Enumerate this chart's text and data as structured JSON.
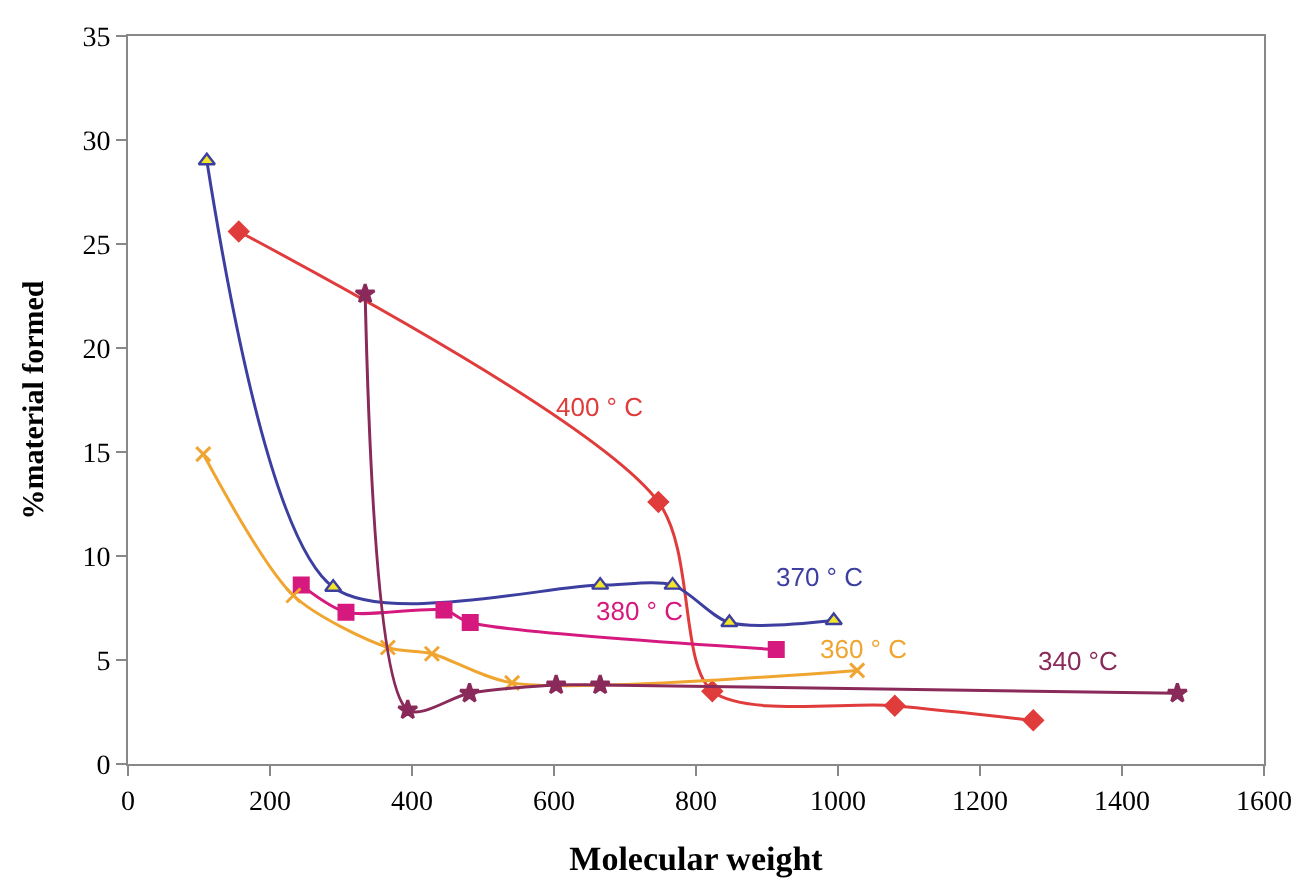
{
  "chart_data": {
    "type": "line",
    "xlabel": "Molecular weight",
    "ylabel": "%material formed",
    "xlim": [
      0,
      1600
    ],
    "xticks": [
      0,
      200,
      400,
      600,
      800,
      1000,
      1200,
      1400,
      1600
    ],
    "ylim": [
      0,
      35
    ],
    "yticks": [
      0,
      5,
      10,
      15,
      20,
      25,
      30,
      35
    ],
    "legend": false,
    "series": [
      {
        "name": "400 ° C",
        "color": "#e03c3c",
        "marker": "diamond",
        "x": [
          156,
          747,
          823,
          1080,
          1275
        ],
        "values": [
          25.6,
          12.6,
          3.5,
          2.8,
          2.1
        ]
      },
      {
        "name": "370 ° C",
        "color": "#3d3fa0",
        "marker": "triangle",
        "x": [
          111,
          289,
          665,
          767,
          847,
          994
        ],
        "values": [
          29.0,
          8.5,
          8.6,
          8.6,
          6.8,
          6.9
        ]
      },
      {
        "name": "380 ° C",
        "color": "#d6197e",
        "marker": "square",
        "x": [
          244,
          307,
          445,
          482,
          913
        ],
        "values": [
          8.6,
          7.3,
          7.4,
          6.8,
          5.5
        ]
      },
      {
        "name": "360 ° C",
        "color": "#f0a530",
        "marker": "cross",
        "x": [
          106,
          233,
          366,
          428,
          541,
          1027
        ],
        "values": [
          14.9,
          8.1,
          5.6,
          5.3,
          3.9,
          4.5
        ]
      },
      {
        "name": "340 °C",
        "color": "#8a2a5a",
        "marker": "star",
        "x": [
          334,
          394,
          481,
          603,
          665,
          1478
        ],
        "values": [
          22.6,
          2.6,
          3.4,
          3.8,
          3.8,
          3.4
        ]
      }
    ]
  }
}
